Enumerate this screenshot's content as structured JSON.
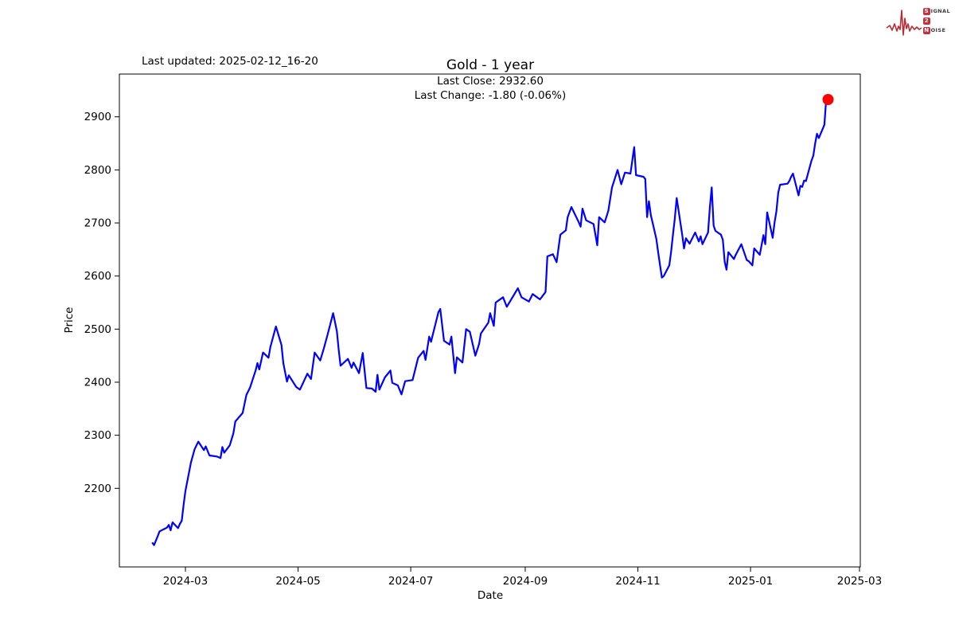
{
  "branding": {
    "logo_rows": [
      {
        "initial": "S",
        "rest": "IGNAL"
      },
      {
        "initial": "2",
        "rest": ""
      },
      {
        "initial": "N",
        "rest": "OISE"
      }
    ],
    "accent_color": "#bb2b33"
  },
  "header": {
    "last_updated": "Last updated: 2025-02-12_16-20"
  },
  "chart_data": {
    "type": "line",
    "title": "Gold - 1 year",
    "annotation_line1": "Last Close: 2932.60",
    "annotation_line2": "Last Change: -1.80 (-0.06%)",
    "last_close": 2932.6,
    "last_change": -1.8,
    "last_change_pct": -0.06,
    "xlabel": "Date",
    "ylabel": "Price",
    "line_color": "#0000ff",
    "last_point_color": "#ff0000",
    "grid": false,
    "ylim_approx": [
      2060,
      2990
    ],
    "y_ticks": [
      2200,
      2300,
      2400,
      2500,
      2600,
      2700,
      2800,
      2900
    ],
    "x_ticks": [
      {
        "label": "2024-03",
        "date": "2024-03-01"
      },
      {
        "label": "2024-05",
        "date": "2024-05-01"
      },
      {
        "label": "2024-07",
        "date": "2024-07-01"
      },
      {
        "label": "2024-09",
        "date": "2024-09-01"
      },
      {
        "label": "2024-11",
        "date": "2024-11-01"
      },
      {
        "label": "2025-01",
        "date": "2025-01-01"
      },
      {
        "label": "2025-03",
        "date": "2025-03-01"
      }
    ],
    "series": [
      {
        "name": "Gold",
        "points": [
          [
            "2024-02-12",
            2098
          ],
          [
            "2024-02-13",
            2093
          ],
          [
            "2024-02-15",
            2110
          ],
          [
            "2024-02-16",
            2119
          ],
          [
            "2024-02-20",
            2126
          ],
          [
            "2024-02-21",
            2131
          ],
          [
            "2024-02-22",
            2121
          ],
          [
            "2024-02-23",
            2136
          ],
          [
            "2024-02-26",
            2125
          ],
          [
            "2024-02-27",
            2133
          ],
          [
            "2024-02-28",
            2139
          ],
          [
            "2024-02-29",
            2169
          ],
          [
            "2024-03-01",
            2195
          ],
          [
            "2024-03-04",
            2249
          ],
          [
            "2024-03-06",
            2274
          ],
          [
            "2024-03-08",
            2288
          ],
          [
            "2024-03-11",
            2272
          ],
          [
            "2024-03-12",
            2279
          ],
          [
            "2024-03-14",
            2262
          ],
          [
            "2024-03-18",
            2260
          ],
          [
            "2024-03-20",
            2257
          ],
          [
            "2024-03-21",
            2278
          ],
          [
            "2024-03-22",
            2267
          ],
          [
            "2024-03-25",
            2281
          ],
          [
            "2024-03-27",
            2304
          ],
          [
            "2024-03-28",
            2326
          ],
          [
            "2024-04-01",
            2342
          ],
          [
            "2024-04-03",
            2376
          ],
          [
            "2024-04-05",
            2390
          ],
          [
            "2024-04-08",
            2422
          ],
          [
            "2024-04-09",
            2436
          ],
          [
            "2024-04-10",
            2424
          ],
          [
            "2024-04-12",
            2456
          ],
          [
            "2024-04-15",
            2446
          ],
          [
            "2024-04-16",
            2466
          ],
          [
            "2024-04-19",
            2505
          ],
          [
            "2024-04-22",
            2470
          ],
          [
            "2024-04-23",
            2436
          ],
          [
            "2024-04-25",
            2401
          ],
          [
            "2024-04-26",
            2413
          ],
          [
            "2024-04-30",
            2391
          ],
          [
            "2024-05-02",
            2386
          ],
          [
            "2024-05-06",
            2416
          ],
          [
            "2024-05-08",
            2406
          ],
          [
            "2024-05-10",
            2456
          ],
          [
            "2024-05-13",
            2441
          ],
          [
            "2024-05-15",
            2464
          ],
          [
            "2024-05-17",
            2490
          ],
          [
            "2024-05-20",
            2530
          ],
          [
            "2024-05-22",
            2496
          ],
          [
            "2024-05-23",
            2461
          ],
          [
            "2024-05-24",
            2431
          ],
          [
            "2024-05-28",
            2444
          ],
          [
            "2024-05-30",
            2427
          ],
          [
            "2024-05-31",
            2437
          ],
          [
            "2024-06-03",
            2417
          ],
          [
            "2024-06-05",
            2455
          ],
          [
            "2024-06-07",
            2389
          ],
          [
            "2024-06-10",
            2388
          ],
          [
            "2024-06-12",
            2382
          ],
          [
            "2024-06-13",
            2414
          ],
          [
            "2024-06-14",
            2386
          ],
          [
            "2024-06-17",
            2409
          ],
          [
            "2024-06-20",
            2422
          ],
          [
            "2024-06-21",
            2399
          ],
          [
            "2024-06-24",
            2394
          ],
          [
            "2024-06-26",
            2377
          ],
          [
            "2024-06-28",
            2402
          ],
          [
            "2024-07-02",
            2404
          ],
          [
            "2024-07-05",
            2446
          ],
          [
            "2024-07-08",
            2459
          ],
          [
            "2024-07-09",
            2442
          ],
          [
            "2024-07-11",
            2486
          ],
          [
            "2024-07-12",
            2476
          ],
          [
            "2024-07-16",
            2532
          ],
          [
            "2024-07-17",
            2538
          ],
          [
            "2024-07-19",
            2478
          ],
          [
            "2024-07-22",
            2471
          ],
          [
            "2024-07-23",
            2486
          ],
          [
            "2024-07-25",
            2417
          ],
          [
            "2024-07-26",
            2447
          ],
          [
            "2024-07-29",
            2437
          ],
          [
            "2024-07-31",
            2500
          ],
          [
            "2024-08-02",
            2495
          ],
          [
            "2024-08-05",
            2450
          ],
          [
            "2024-08-07",
            2472
          ],
          [
            "2024-08-08",
            2492
          ],
          [
            "2024-08-12",
            2512
          ],
          [
            "2024-08-13",
            2530
          ],
          [
            "2024-08-15",
            2506
          ],
          [
            "2024-08-16",
            2550
          ],
          [
            "2024-08-20",
            2560
          ],
          [
            "2024-08-22",
            2542
          ],
          [
            "2024-08-26",
            2565
          ],
          [
            "2024-08-28",
            2577
          ],
          [
            "2024-08-30",
            2560
          ],
          [
            "2024-09-03",
            2552
          ],
          [
            "2024-09-05",
            2566
          ],
          [
            "2024-09-09",
            2556
          ],
          [
            "2024-09-12",
            2570
          ],
          [
            "2024-09-13",
            2637
          ],
          [
            "2024-09-16",
            2641
          ],
          [
            "2024-09-18",
            2626
          ],
          [
            "2024-09-20",
            2678
          ],
          [
            "2024-09-23",
            2686
          ],
          [
            "2024-09-24",
            2711
          ],
          [
            "2024-09-26",
            2730
          ],
          [
            "2024-09-30",
            2701
          ],
          [
            "2024-10-01",
            2693
          ],
          [
            "2024-10-02",
            2727
          ],
          [
            "2024-10-04",
            2705
          ],
          [
            "2024-10-08",
            2698
          ],
          [
            "2024-10-10",
            2658
          ],
          [
            "2024-10-11",
            2711
          ],
          [
            "2024-10-14",
            2701
          ],
          [
            "2024-10-16",
            2723
          ],
          [
            "2024-10-18",
            2767
          ],
          [
            "2024-10-21",
            2800
          ],
          [
            "2024-10-23",
            2773
          ],
          [
            "2024-10-25",
            2795
          ],
          [
            "2024-10-28",
            2793
          ],
          [
            "2024-10-30",
            2843
          ],
          [
            "2024-10-31",
            2790
          ],
          [
            "2024-11-04",
            2787
          ],
          [
            "2024-11-05",
            2783
          ],
          [
            "2024-11-06",
            2711
          ],
          [
            "2024-11-07",
            2741
          ],
          [
            "2024-11-08",
            2715
          ],
          [
            "2024-11-11",
            2670
          ],
          [
            "2024-11-12",
            2645
          ],
          [
            "2024-11-13",
            2620
          ],
          [
            "2024-11-14",
            2597
          ],
          [
            "2024-11-15",
            2600
          ],
          [
            "2024-11-18",
            2620
          ],
          [
            "2024-11-19",
            2646
          ],
          [
            "2024-11-20",
            2678
          ],
          [
            "2024-11-21",
            2708
          ],
          [
            "2024-11-22",
            2747
          ],
          [
            "2024-11-25",
            2678
          ],
          [
            "2024-11-26",
            2652
          ],
          [
            "2024-11-27",
            2671
          ],
          [
            "2024-11-29",
            2661
          ],
          [
            "2024-12-02",
            2682
          ],
          [
            "2024-12-04",
            2665
          ],
          [
            "2024-12-05",
            2675
          ],
          [
            "2024-12-06",
            2660
          ],
          [
            "2024-12-09",
            2682
          ],
          [
            "2024-12-10",
            2730
          ],
          [
            "2024-12-11",
            2767
          ],
          [
            "2024-12-12",
            2695
          ],
          [
            "2024-12-13",
            2685
          ],
          [
            "2024-12-16",
            2678
          ],
          [
            "2024-12-17",
            2668
          ],
          [
            "2024-12-18",
            2627
          ],
          [
            "2024-12-19",
            2612
          ],
          [
            "2024-12-20",
            2645
          ],
          [
            "2024-12-23",
            2632
          ],
          [
            "2024-12-24",
            2640
          ],
          [
            "2024-12-27",
            2660
          ],
          [
            "2024-12-30",
            2630
          ],
          [
            "2024-12-31",
            2628
          ],
          [
            "2025-01-02",
            2620
          ],
          [
            "2025-01-03",
            2652
          ],
          [
            "2025-01-06",
            2640
          ],
          [
            "2025-01-08",
            2677
          ],
          [
            "2025-01-09",
            2660
          ],
          [
            "2025-01-10",
            2720
          ],
          [
            "2025-01-13",
            2672
          ],
          [
            "2025-01-14",
            2700
          ],
          [
            "2025-01-15",
            2722
          ],
          [
            "2025-01-16",
            2757
          ],
          [
            "2025-01-17",
            2772
          ],
          [
            "2025-01-21",
            2774
          ],
          [
            "2025-01-22",
            2779
          ],
          [
            "2025-01-23",
            2787
          ],
          [
            "2025-01-24",
            2793
          ],
          [
            "2025-01-27",
            2752
          ],
          [
            "2025-01-28",
            2770
          ],
          [
            "2025-01-29",
            2768
          ],
          [
            "2025-01-30",
            2780
          ],
          [
            "2025-01-31",
            2779
          ],
          [
            "2025-02-03",
            2817
          ],
          [
            "2025-02-04",
            2827
          ],
          [
            "2025-02-05",
            2850
          ],
          [
            "2025-02-06",
            2868
          ],
          [
            "2025-02-07",
            2860
          ],
          [
            "2025-02-10",
            2885
          ],
          [
            "2025-02-11",
            2934.4
          ],
          [
            "2025-02-12",
            2932.6
          ]
        ]
      }
    ]
  }
}
